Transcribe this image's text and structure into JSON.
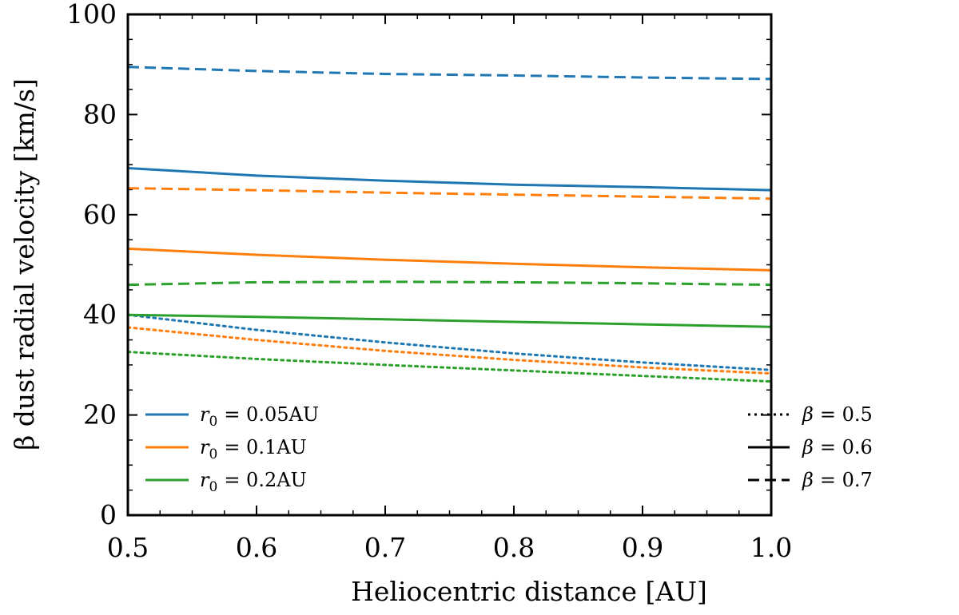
{
  "chart_data": {
    "type": "line",
    "title": "",
    "xlabel": "Heliocentric distance [AU]",
    "ylabel": "β dust radial velocity [km/s]",
    "xlim": [
      0.5,
      1.0
    ],
    "ylim": [
      0,
      100
    ],
    "xticks": [
      0.5,
      0.6,
      0.7,
      0.8,
      0.9,
      1.0
    ],
    "xtick_labels": [
      "0.5",
      "0.6",
      "0.7",
      "0.8",
      "0.9",
      "1.0"
    ],
    "yticks": [
      0,
      20,
      40,
      60,
      80,
      100
    ],
    "ytick_labels": [
      "0",
      "20",
      "40",
      "60",
      "80",
      "100"
    ],
    "x": [
      0.5,
      0.6,
      0.7,
      0.8,
      0.9,
      1.0
    ],
    "series": [
      {
        "name": "r0 = 0.05AU, β = 0.5",
        "color": "#1f77b4",
        "style": "dotted",
        "values": [
          40.0,
          37.0,
          34.5,
          32.3,
          30.5,
          29.0
        ]
      },
      {
        "name": "r0 = 0.05AU, β = 0.6",
        "color": "#1f77b4",
        "style": "solid",
        "values": [
          69.3,
          67.8,
          66.8,
          66.0,
          65.5,
          64.9
        ]
      },
      {
        "name": "r0 = 0.05AU, β = 0.7",
        "color": "#1f77b4",
        "style": "dashed",
        "values": [
          89.5,
          88.7,
          88.1,
          87.8,
          87.4,
          87.1
        ]
      },
      {
        "name": "r0 = 0.1AU, β = 0.5",
        "color": "#ff7f0e",
        "style": "dotted",
        "values": [
          37.5,
          35.0,
          32.8,
          31.0,
          29.5,
          28.3
        ]
      },
      {
        "name": "r0 = 0.1AU, β = 0.6",
        "color": "#ff7f0e",
        "style": "solid",
        "values": [
          53.2,
          52.0,
          51.0,
          50.2,
          49.5,
          48.9
        ]
      },
      {
        "name": "r0 = 0.1AU, β = 0.7",
        "color": "#ff7f0e",
        "style": "dashed",
        "values": [
          65.3,
          64.9,
          64.4,
          64.0,
          63.6,
          63.2
        ]
      },
      {
        "name": "r0 = 0.2AU, β = 0.5",
        "color": "#2ca02c",
        "style": "dotted",
        "values": [
          32.6,
          31.2,
          30.0,
          28.9,
          27.8,
          26.7
        ]
      },
      {
        "name": "r0 = 0.2AU, β = 0.6",
        "color": "#2ca02c",
        "style": "solid",
        "values": [
          40.0,
          39.6,
          39.1,
          38.6,
          38.1,
          37.6
        ]
      },
      {
        "name": "r0 = 0.2AU, β = 0.7",
        "color": "#2ca02c",
        "style": "dashed",
        "values": [
          46.0,
          46.5,
          46.6,
          46.5,
          46.3,
          46.0
        ]
      }
    ],
    "legend_left": {
      "placement": "bottom-left",
      "entries": [
        {
          "symbol": "r",
          "subscript": "0",
          "text": "= 0.05AU",
          "color": "#1f77b4",
          "style": "solid"
        },
        {
          "symbol": "r",
          "subscript": "0",
          "text": "= 0.1AU",
          "color": "#ff7f0e",
          "style": "solid"
        },
        {
          "symbol": "r",
          "subscript": "0",
          "text": "= 0.2AU",
          "color": "#2ca02c",
          "style": "solid"
        }
      ]
    },
    "legend_right": {
      "placement": "bottom-right",
      "entries": [
        {
          "symbol": "β",
          "text": "= 0.5",
          "color": "#000000",
          "style": "dotted"
        },
        {
          "symbol": "β",
          "text": "= 0.6",
          "color": "#000000",
          "style": "solid"
        },
        {
          "symbol": "β",
          "text": "= 0.7",
          "color": "#000000",
          "style": "dashed"
        }
      ]
    }
  }
}
